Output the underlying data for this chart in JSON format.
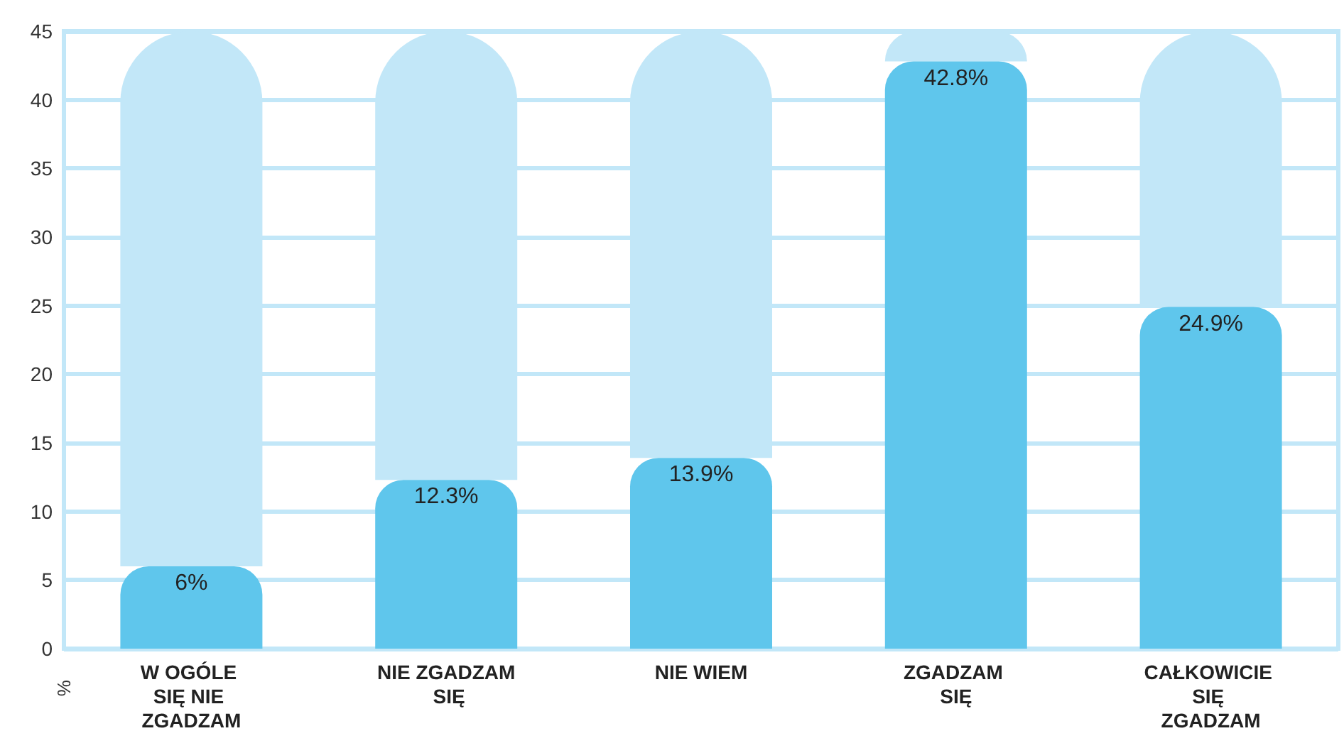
{
  "chart_data": {
    "type": "bar",
    "ylabel": "%",
    "categories": [
      "W OGÓLE SIĘ NIE ZGADZAM",
      "NIE ZGADZAM SIĘ",
      "NIE WIEM",
      "ZGADZAM SIĘ",
      "CAŁKOWICIE SIĘ ZGADZAM"
    ],
    "stacked": true,
    "series": [
      {
        "color": "#5fc6ec",
        "values": [
          6,
          12.3,
          13.9,
          42.8,
          24.9
        ],
        "value_labels": [
          "6%",
          "12.3%",
          "13.9%",
          "42.8%",
          "24.9%"
        ]
      },
      {
        "color": "#c2e7f8",
        "values": [
          39,
          32.7,
          31.1,
          2.2,
          20.1
        ]
      }
    ],
    "ylim": [
      0,
      45
    ],
    "yticks": [
      0,
      5,
      10,
      15,
      20,
      25,
      30,
      35,
      40,
      45
    ],
    "grid": "y"
  }
}
